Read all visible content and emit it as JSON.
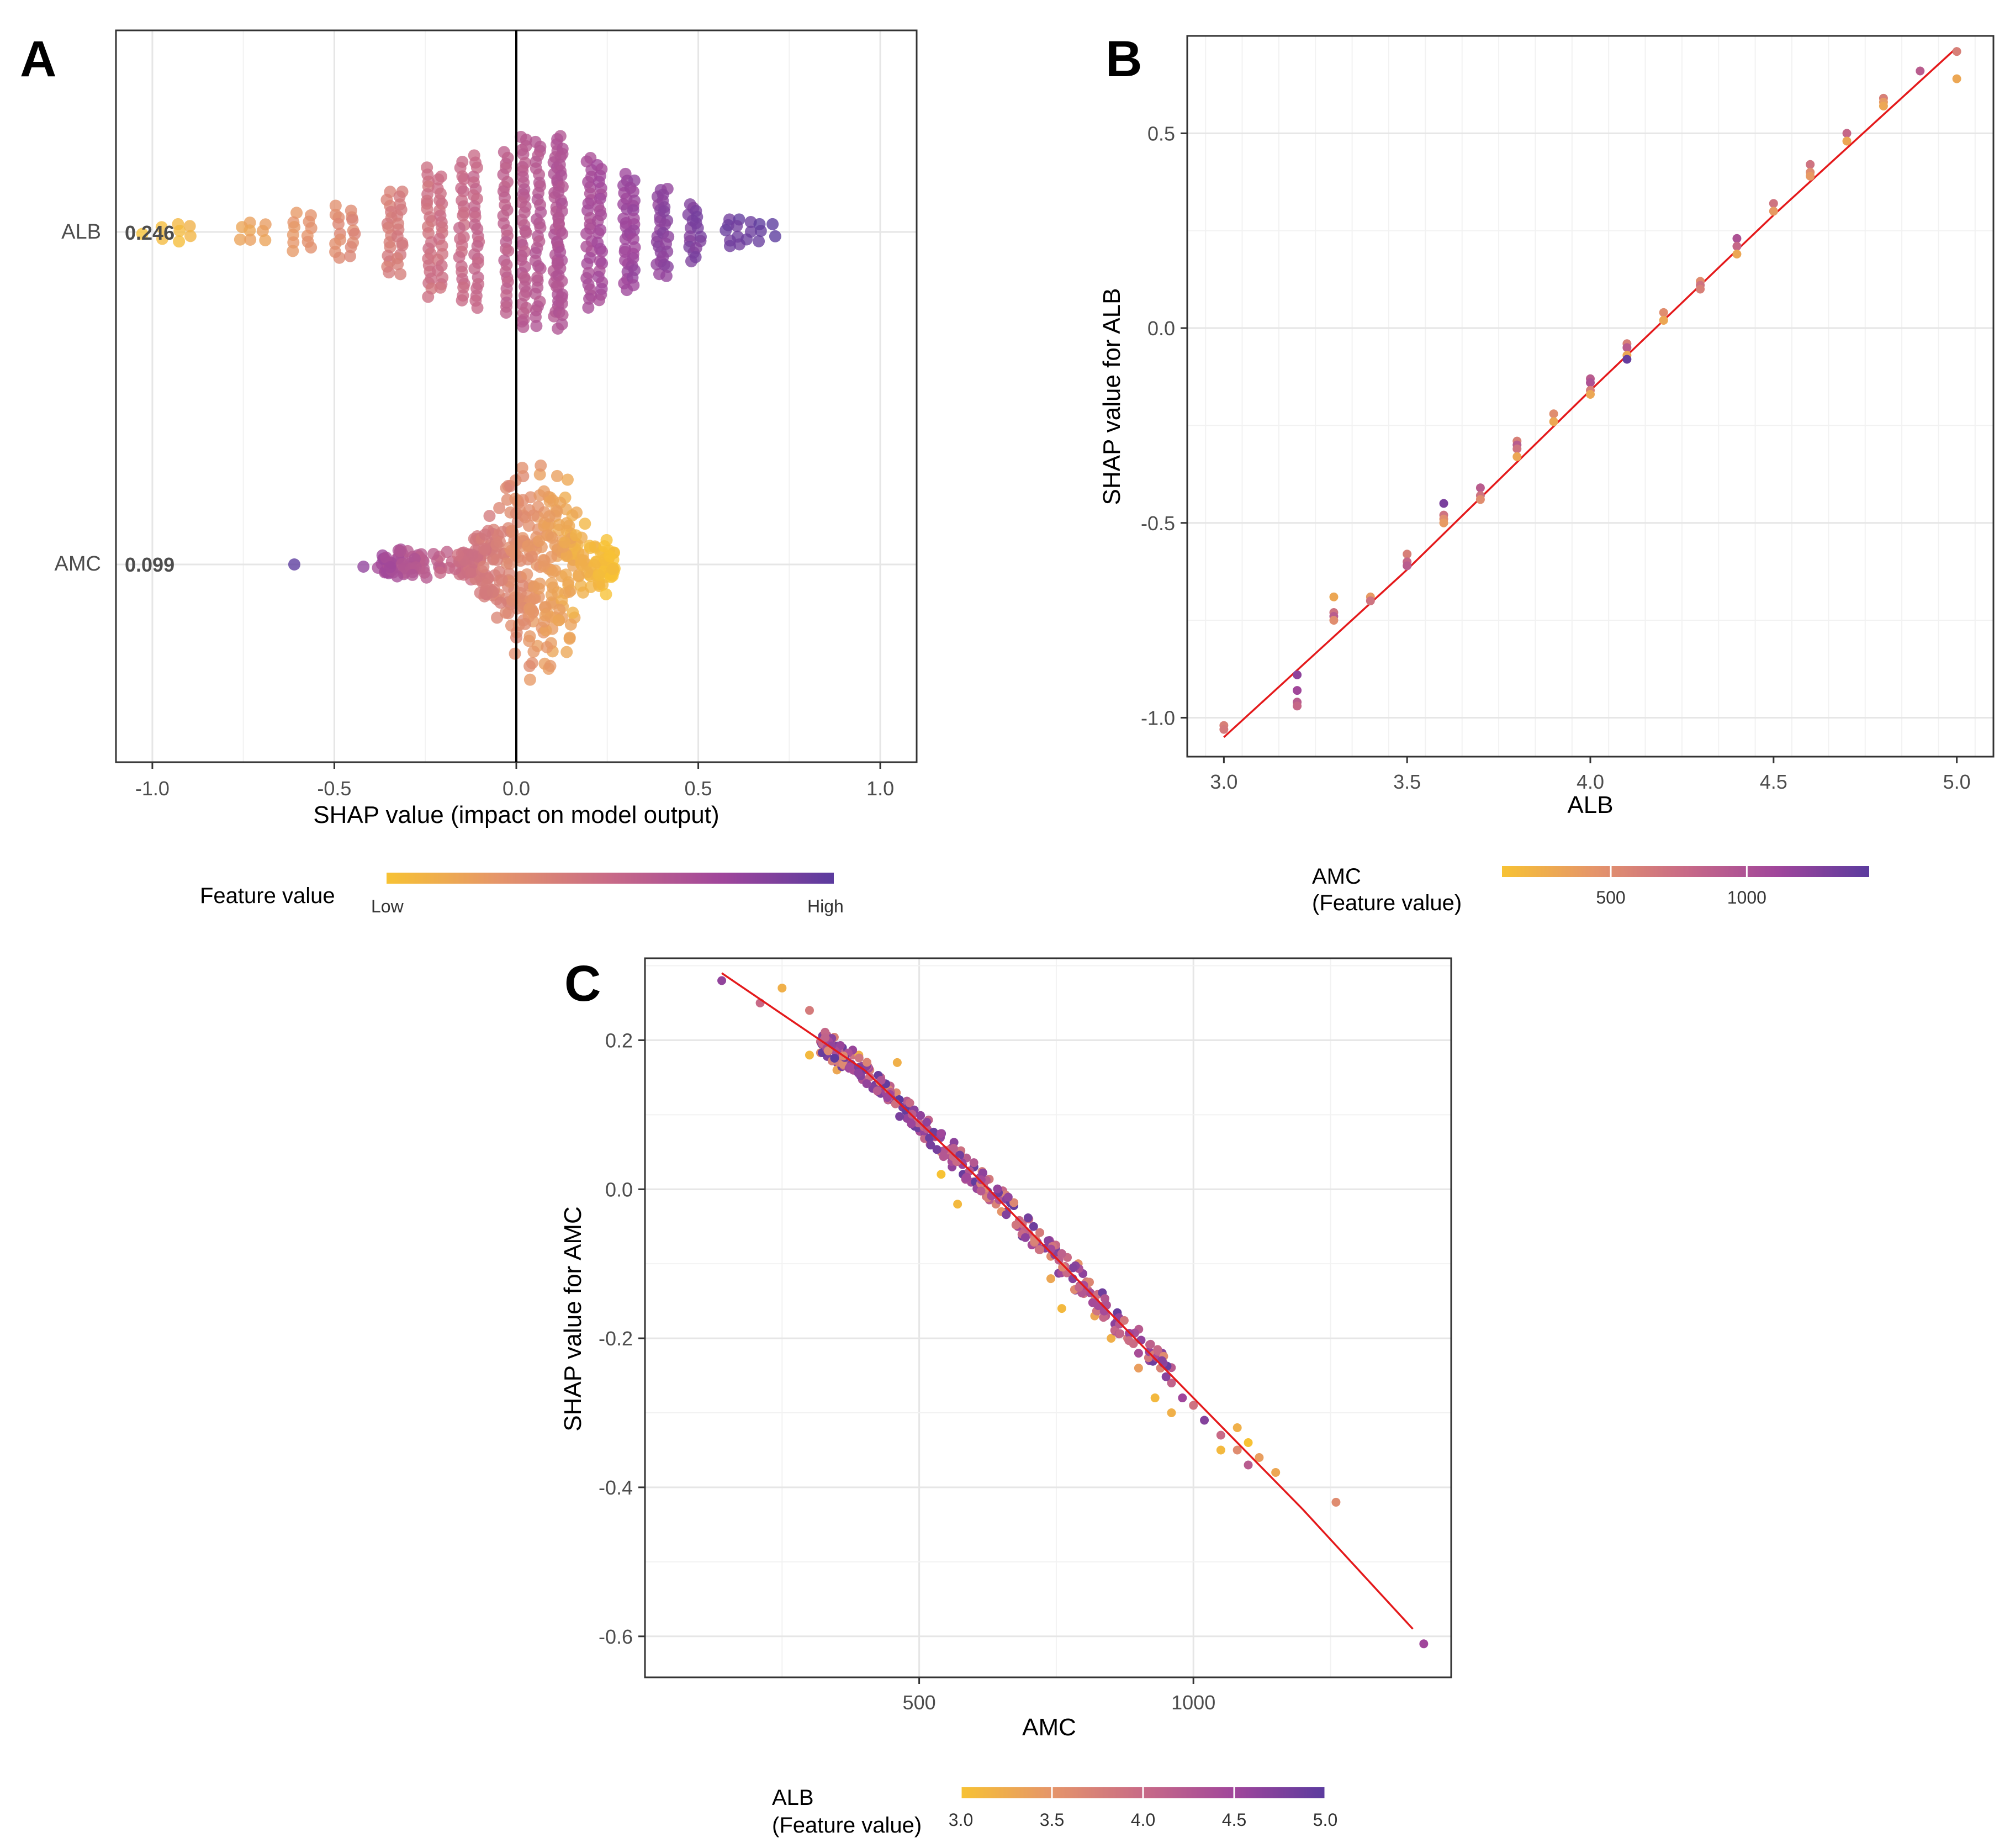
{
  "panels": {
    "A": {
      "letter": "A"
    },
    "B": {
      "letter": "B"
    },
    "C": {
      "letter": "C"
    }
  },
  "colors": {
    "low": "#F7C234",
    "mid1": "#E5956A",
    "mid2": "#C86A87",
    "mid3": "#A0469B",
    "high": "#5B3B9E",
    "fit_line": "#E41A1C",
    "zero_line": "#000000"
  },
  "chart_data": [
    {
      "id": "A",
      "type": "scatter",
      "subtype": "beeswarm",
      "xlabel": "SHAP value (impact on model output)",
      "xlim": [
        -1.1,
        1.1
      ],
      "x_ticks": [
        -1.0,
        -0.5,
        0.0,
        0.5,
        1.0
      ],
      "x_tick_labels": [
        "-1.0",
        "-0.5",
        "0.0",
        "0.5",
        "1.0"
      ],
      "features": [
        {
          "name": "ALB",
          "mean_abs_shap": "0.246",
          "shap_range": [
            -1.02,
            0.71
          ],
          "color_direction": "increasing"
        },
        {
          "name": "AMC",
          "mean_abs_shap": "0.099",
          "shap_range": [
            -0.61,
            0.27
          ],
          "color_direction": "decreasing"
        }
      ],
      "legend": {
        "title": "Feature value",
        "low_label": "Low",
        "high_label": "High",
        "position": "bottom"
      }
    },
    {
      "id": "B",
      "type": "scatter",
      "xlabel": "ALB",
      "ylabel": "SHAP value for ALB",
      "xlim": [
        2.9,
        5.1
      ],
      "ylim": [
        -1.1,
        0.75
      ],
      "x_ticks": [
        3.0,
        3.5,
        4.0,
        4.5,
        5.0
      ],
      "x_tick_labels": [
        "3.0",
        "3.5",
        "4.0",
        "4.5",
        "5.0"
      ],
      "y_ticks": [
        -1.0,
        -0.5,
        0.0,
        0.5
      ],
      "y_tick_labels": [
        "-1.0",
        "-0.5",
        "0.0",
        "0.5"
      ],
      "points": [
        [
          3.0,
          -1.02
        ],
        [
          3.0,
          -1.03
        ],
        [
          3.2,
          -0.89
        ],
        [
          3.2,
          -0.93
        ],
        [
          3.2,
          -0.96
        ],
        [
          3.2,
          -0.97
        ],
        [
          3.3,
          -0.69
        ],
        [
          3.3,
          -0.73
        ],
        [
          3.3,
          -0.74
        ],
        [
          3.3,
          -0.75
        ],
        [
          3.4,
          -0.69
        ],
        [
          3.4,
          -0.7
        ],
        [
          3.5,
          -0.58
        ],
        [
          3.5,
          -0.6
        ],
        [
          3.5,
          -0.61
        ],
        [
          3.6,
          -0.45
        ],
        [
          3.6,
          -0.48
        ],
        [
          3.6,
          -0.49
        ],
        [
          3.6,
          -0.5
        ],
        [
          3.7,
          -0.41
        ],
        [
          3.7,
          -0.43
        ],
        [
          3.7,
          -0.44
        ],
        [
          3.8,
          -0.29
        ],
        [
          3.8,
          -0.3
        ],
        [
          3.8,
          -0.31
        ],
        [
          3.8,
          -0.33
        ],
        [
          3.9,
          -0.22
        ],
        [
          3.9,
          -0.24
        ],
        [
          4.0,
          -0.13
        ],
        [
          4.0,
          -0.14
        ],
        [
          4.0,
          -0.16
        ],
        [
          4.0,
          -0.17
        ],
        [
          4.1,
          -0.04
        ],
        [
          4.1,
          -0.05
        ],
        [
          4.1,
          -0.07
        ],
        [
          4.1,
          -0.08
        ],
        [
          4.2,
          0.04
        ],
        [
          4.2,
          0.02
        ],
        [
          4.3,
          0.12
        ],
        [
          4.3,
          0.11
        ],
        [
          4.3,
          0.1
        ],
        [
          4.4,
          0.23
        ],
        [
          4.4,
          0.21
        ],
        [
          4.4,
          0.19
        ],
        [
          4.5,
          0.32
        ],
        [
          4.5,
          0.3
        ],
        [
          4.6,
          0.42
        ],
        [
          4.6,
          0.4
        ],
        [
          4.6,
          0.39
        ],
        [
          4.7,
          0.5
        ],
        [
          4.7,
          0.48
        ],
        [
          4.8,
          0.59
        ],
        [
          4.8,
          0.58
        ],
        [
          4.8,
          0.57
        ],
        [
          4.9,
          0.66
        ],
        [
          5.0,
          0.71
        ],
        [
          5.0,
          0.64
        ]
      ],
      "point_amc": [
        600,
        650,
        1200,
        1100,
        900,
        800,
        300,
        700,
        900,
        500,
        400,
        700,
        600,
        800,
        900,
        1300,
        700,
        500,
        400,
        900,
        700,
        500,
        600,
        900,
        700,
        300,
        500,
        300,
        900,
        1000,
        600,
        300,
        600,
        900,
        300,
        1400,
        500,
        300,
        500,
        700,
        600,
        1000,
        800,
        300,
        700,
        400,
        700,
        500,
        400,
        800,
        300,
        600,
        400,
        300,
        900,
        600,
        300
      ],
      "fit_line": {
        "x": [
          3.0,
          3.5,
          4.0,
          4.5,
          5.0
        ],
        "y": [
          -1.05,
          -0.62,
          -0.16,
          0.29,
          0.72
        ]
      },
      "legend": {
        "title_line1": "AMC",
        "title_line2": "(Feature value)",
        "tick_labels": [
          "500",
          "1000"
        ],
        "tick_values": [
          500,
          1000
        ],
        "range": [
          100,
          1450
        ],
        "position": "bottom"
      }
    },
    {
      "id": "C",
      "type": "scatter",
      "xlabel": "AMC",
      "ylabel": "SHAP value for AMC",
      "xlim": [
        0,
        1470
      ],
      "ylim": [
        -0.655,
        0.31
      ],
      "x_ticks": [
        500,
        1000
      ],
      "x_tick_labels": [
        "500",
        "1000"
      ],
      "y_ticks": [
        -0.6,
        -0.4,
        -0.2,
        0.0,
        0.2
      ],
      "y_tick_labels": [
        "-0.6",
        "-0.4",
        "-0.2",
        "0.0",
        "0.2"
      ],
      "points": [
        [
          140,
          0.28
        ],
        [
          210,
          0.25
        ],
        [
          250,
          0.27
        ],
        [
          300,
          0.24
        ],
        [
          330,
          0.19
        ],
        [
          340,
          0.2
        ],
        [
          350,
          0.17
        ],
        [
          360,
          0.19
        ],
        [
          370,
          0.17
        ],
        [
          380,
          0.18
        ],
        [
          400,
          0.16
        ],
        [
          410,
          0.16
        ],
        [
          420,
          0.14
        ],
        [
          430,
          0.15
        ],
        [
          440,
          0.13
        ],
        [
          450,
          0.12
        ],
        [
          460,
          0.12
        ],
        [
          470,
          0.11
        ],
        [
          480,
          0.1
        ],
        [
          490,
          0.09
        ],
        [
          500,
          0.08
        ],
        [
          520,
          0.06
        ],
        [
          540,
          0.05
        ],
        [
          560,
          0.03
        ],
        [
          580,
          0.02
        ],
        [
          600,
          0.01
        ],
        [
          620,
          0.0
        ],
        [
          640,
          -0.02
        ],
        [
          660,
          -0.03
        ],
        [
          680,
          -0.05
        ],
        [
          700,
          -0.06
        ],
        [
          720,
          -0.08
        ],
        [
          740,
          -0.09
        ],
        [
          760,
          -0.11
        ],
        [
          780,
          -0.12
        ],
        [
          800,
          -0.14
        ],
        [
          820,
          -0.15
        ],
        [
          840,
          -0.17
        ],
        [
          860,
          -0.18
        ],
        [
          880,
          -0.2
        ],
        [
          900,
          -0.22
        ],
        [
          920,
          -0.23
        ],
        [
          940,
          -0.24
        ],
        [
          960,
          -0.26
        ],
        [
          980,
          -0.28
        ],
        [
          1000,
          -0.29
        ],
        [
          1020,
          -0.31
        ],
        [
          1050,
          -0.33
        ],
        [
          1080,
          -0.35
        ],
        [
          1100,
          -0.37
        ],
        [
          1120,
          -0.36
        ],
        [
          1150,
          -0.38
        ],
        [
          1260,
          -0.42
        ],
        [
          1420,
          -0.61
        ],
        [
          300,
          0.18
        ],
        [
          350,
          0.16
        ],
        [
          390,
          0.18
        ],
        [
          450,
          0.13
        ],
        [
          460,
          0.17
        ],
        [
          540,
          0.02
        ],
        [
          570,
          -0.02
        ],
        [
          600,
          0.03
        ],
        [
          650,
          -0.03
        ],
        [
          700,
          -0.04
        ],
        [
          740,
          -0.12
        ],
        [
          760,
          -0.16
        ],
        [
          790,
          -0.1
        ],
        [
          820,
          -0.17
        ],
        [
          850,
          -0.2
        ],
        [
          900,
          -0.24
        ],
        [
          930,
          -0.28
        ],
        [
          960,
          -0.3
        ],
        [
          1050,
          -0.35
        ],
        [
          1080,
          -0.32
        ],
        [
          1100,
          -0.34
        ]
      ],
      "point_alb": [
        4.6,
        4.0,
        3.2,
        3.8,
        3.5,
        4.2,
        4.6,
        4.9,
        4.4,
        3.9,
        4.7,
        3.7,
        4.8,
        4.1,
        4.6,
        4.3,
        3.9,
        4.8,
        4.5,
        4.0,
        4.7,
        4.2,
        3.8,
        4.6,
        4.9,
        4.1,
        4.4,
        3.7,
        4.8,
        4.5,
        4.0,
        4.6,
        3.6,
        4.3,
        4.7,
        3.9,
        4.5,
        4.2,
        4.8,
        3.8,
        4.4,
        4.6,
        3.7,
        4.1,
        4.5,
        3.9,
        4.7,
        4.0,
        3.6,
        4.2,
        3.4,
        3.3,
        3.6,
        4.5,
        3.1,
        3.3,
        3.2,
        4.9,
        3.2,
        3.0,
        3.1,
        4.9,
        3.5,
        4.0,
        3.3,
        3.1,
        3.5,
        3.3,
        3.2,
        3.4,
        3.1,
        3.2,
        3.1,
        3.2,
        3.0
      ],
      "fit_line": {
        "x": [
          140,
          400,
          600,
          800,
          1000,
          1200,
          1400
        ],
        "y": [
          0.29,
          0.16,
          0.02,
          -0.13,
          -0.28,
          -0.43,
          -0.59
        ]
      },
      "legend": {
        "title_line1": "ALB",
        "title_line2": "(Feature value)",
        "tick_labels": [
          "3.0",
          "3.5",
          "4.0",
          "4.5",
          "5.0"
        ],
        "tick_values": [
          3.0,
          3.5,
          4.0,
          4.5,
          5.0
        ],
        "range": [
          3.0,
          5.0
        ],
        "position": "bottom"
      }
    }
  ]
}
